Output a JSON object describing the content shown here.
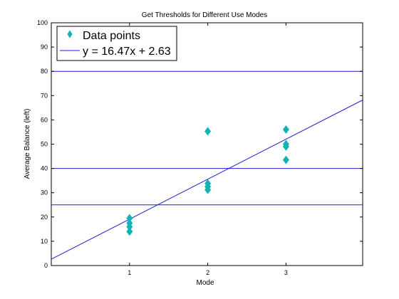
{
  "chart_data": {
    "type": "scatter",
    "title": "Get Thresholds for Different Use Modes",
    "xlabel": "Mode",
    "ylabel": "Average Balance (left)",
    "xlim": [
      0,
      3.98
    ],
    "ylim": [
      0,
      100
    ],
    "xticks": [
      1,
      2,
      3
    ],
    "yticks": [
      0,
      10,
      20,
      30,
      40,
      50,
      60,
      70,
      80,
      90,
      100
    ],
    "grid": false,
    "legend_position": "top-left",
    "series": [
      {
        "name": "Data points",
        "marker": "diamond",
        "color": "#14b3b3",
        "points": [
          {
            "x": 1,
            "y": 19.5
          },
          {
            "x": 1,
            "y": 17.5
          },
          {
            "x": 1,
            "y": 16
          },
          {
            "x": 1,
            "y": 14
          },
          {
            "x": 2,
            "y": 55.3
          },
          {
            "x": 2,
            "y": 33.8
          },
          {
            "x": 2,
            "y": 32.5
          },
          {
            "x": 2,
            "y": 31.2
          },
          {
            "x": 3,
            "y": 56
          },
          {
            "x": 3,
            "y": 50
          },
          {
            "x": 3,
            "y": 49
          },
          {
            "x": 3,
            "y": 43.5
          }
        ]
      },
      {
        "name": "y = 16.47x + 2.63",
        "type": "line",
        "color": "#1f1fd6",
        "slope": 16.47,
        "intercept": 2.63
      }
    ],
    "thresholds": [
      80,
      40,
      25
    ],
    "threshold_color": "#1f1fd6"
  }
}
